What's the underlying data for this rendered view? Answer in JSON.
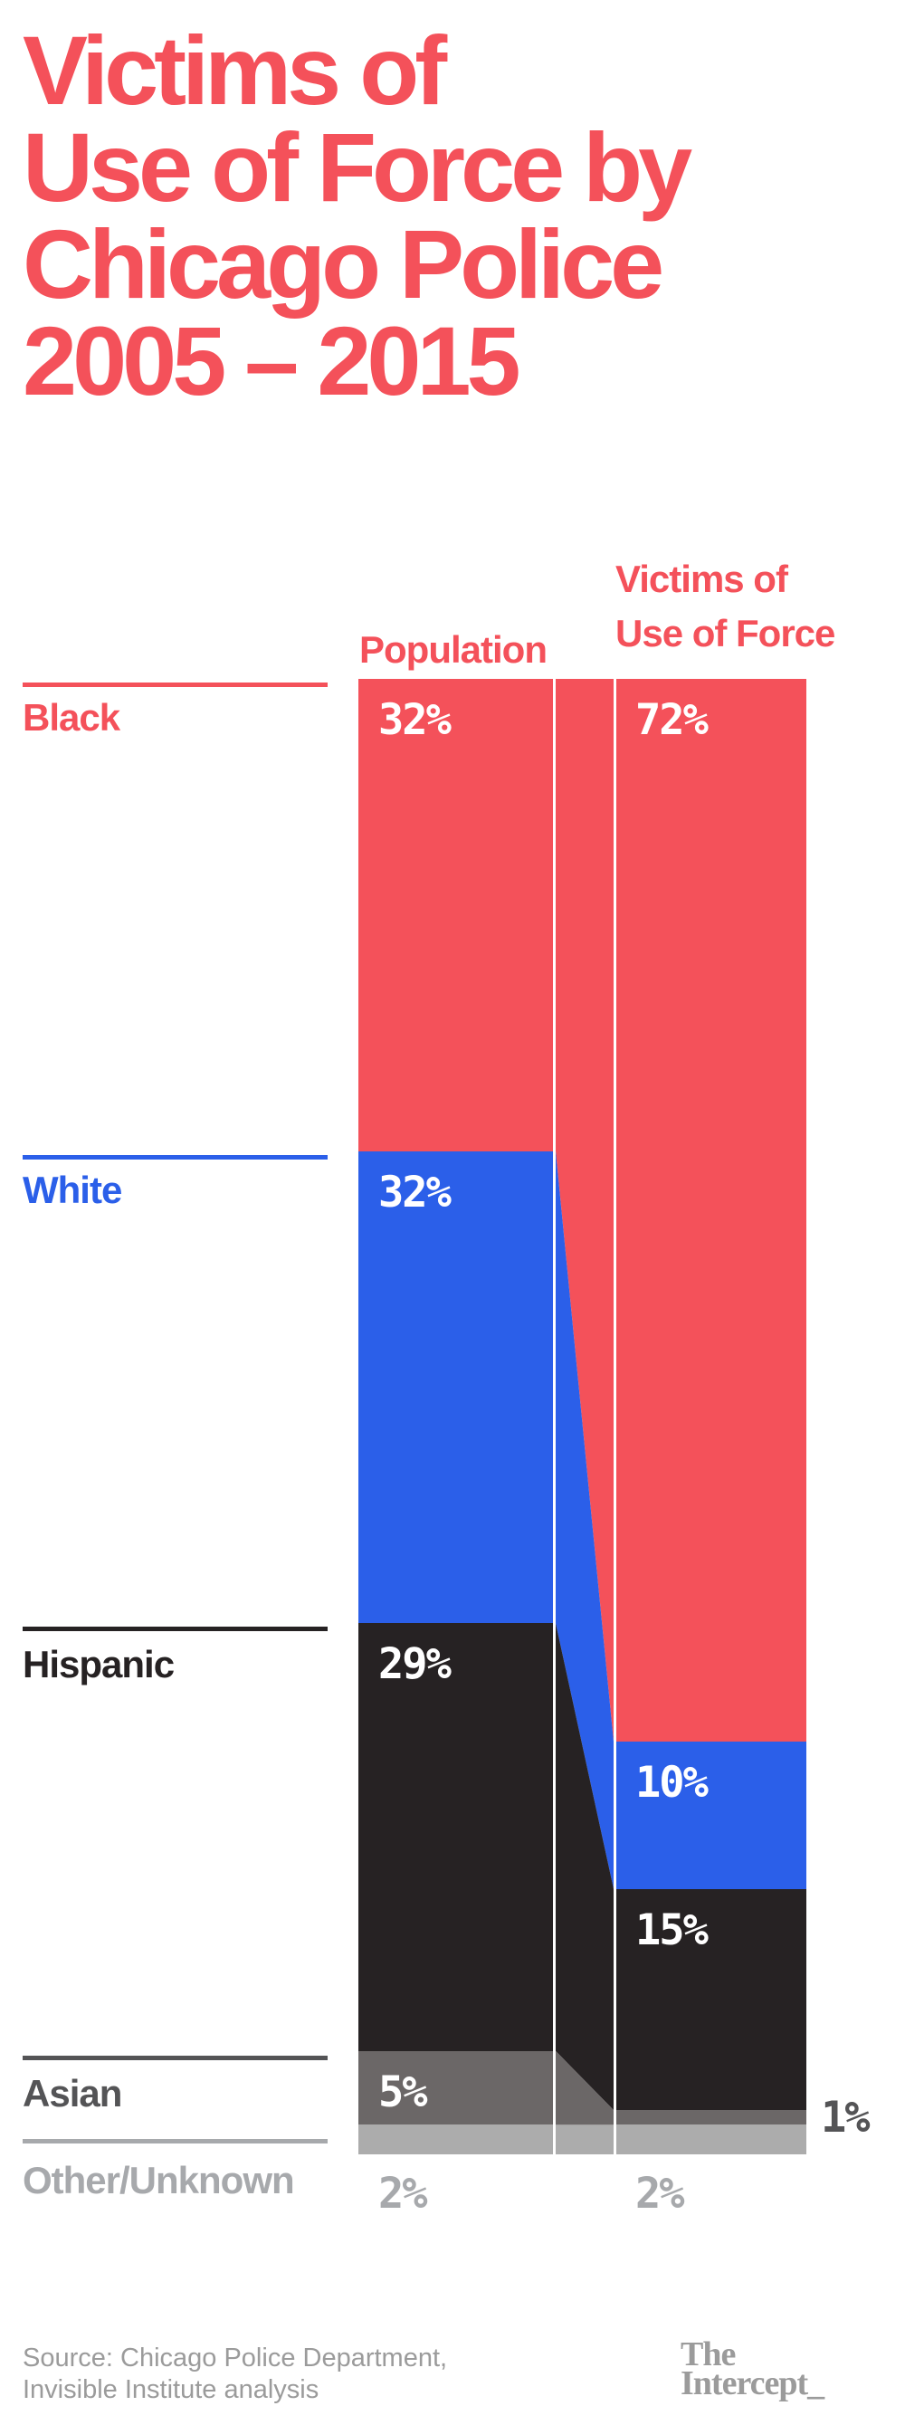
{
  "title": {
    "lines": [
      "Victims of",
      "Use of Force by",
      "Chicago Police",
      "2005 – 2015"
    ],
    "color": "#f4515a"
  },
  "chart_data": {
    "type": "slope-stacked-bar",
    "title": "Victims of Use of Force by Chicago Police 2005 – 2015",
    "unit": "percent",
    "column_headers": {
      "population": "Population",
      "victims_line1": "Victims of",
      "victims_line2": "Use of Force"
    },
    "columns": [
      "Population",
      "Victims of Use of Force"
    ],
    "categories": [
      {
        "label": "Black",
        "population_pct": 32,
        "victims_pct": 72,
        "bar_color": "#f4515a",
        "row_color": "#f4515a",
        "population_label": "32%",
        "victims_label": "72%",
        "population_label_pos": "inside",
        "victims_label_pos": "inside",
        "population_label_color": "#ffffff",
        "victims_label_color": "#ffffff"
      },
      {
        "label": "White",
        "population_pct": 32,
        "victims_pct": 10,
        "bar_color": "#2b5fe9",
        "row_color": "#2b5fe9",
        "population_label": "32%",
        "victims_label": "10%",
        "population_label_pos": "inside",
        "victims_label_pos": "inside",
        "population_label_color": "#ffffff",
        "victims_label_color": "#ffffff"
      },
      {
        "label": "Hispanic",
        "population_pct": 29,
        "victims_pct": 15,
        "bar_color": "#262223",
        "row_color": "#262223",
        "population_label": "29%",
        "victims_label": "15%",
        "population_label_pos": "inside",
        "victims_label_pos": "inside",
        "population_label_color": "#ffffff",
        "victims_label_color": "#ffffff"
      },
      {
        "label": "Asian",
        "population_pct": 5,
        "victims_pct": 1,
        "bar_color": "#6b6767",
        "row_color": "#545456",
        "population_label": "5%",
        "victims_label": "1%",
        "population_label_pos": "inside",
        "victims_label_pos": "right",
        "population_label_color": "#ffffff",
        "victims_label_color": "#545456"
      },
      {
        "label": "Other/Unknown",
        "population_pct": 2,
        "victims_pct": 2,
        "bar_color": "#acacac",
        "row_color": "#a7a9ac",
        "population_label": "2%",
        "victims_label": "2%",
        "population_label_pos": "below",
        "victims_label_pos": "below",
        "population_label_color": "#a7a9ac",
        "victims_label_color": "#a7a9ac"
      }
    ],
    "header_color": "#f4515a",
    "legend_position": "left-row-labels",
    "grid": false
  },
  "footer": {
    "source_lines": [
      "Source: Chicago Police Department,",
      "Invisible Institute analysis"
    ],
    "logo_lines": [
      "The",
      "Intercept_"
    ],
    "text_color": "#9b9b9b"
  }
}
